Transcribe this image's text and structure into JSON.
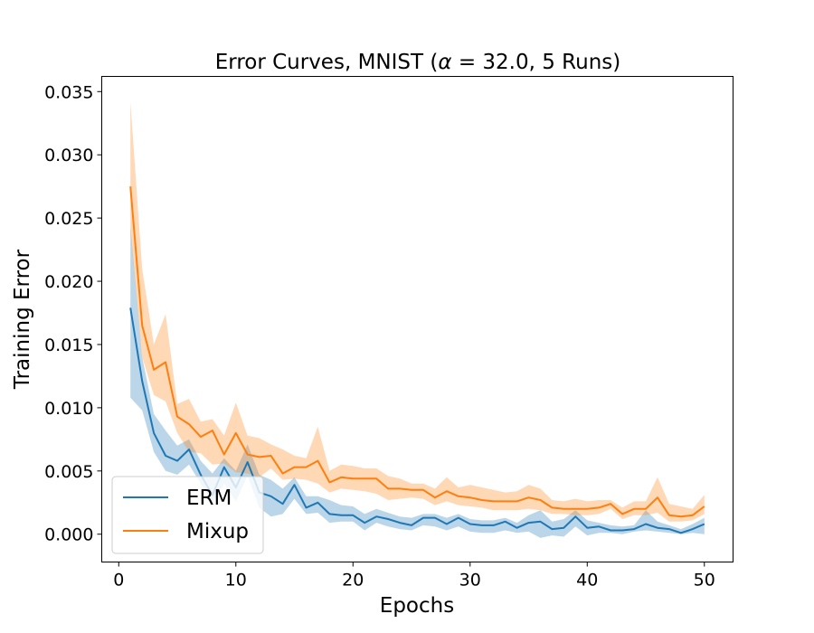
{
  "chart_data": {
    "type": "line",
    "title_main": "Error Curves, MNIST (",
    "title_greek": "α",
    "title_rest": " = 32.0, 5 Runs)",
    "xlabel": "Epochs",
    "ylabel": "Training Error",
    "xlim": [
      -1.45,
      52.45
    ],
    "ylim": [
      -0.0022,
      0.0362
    ],
    "xticks": [
      0,
      10,
      20,
      30,
      40,
      50
    ],
    "xtick_labels": [
      "0",
      "10",
      "20",
      "30",
      "40",
      "50"
    ],
    "yticks": [
      0.0,
      0.005,
      0.01,
      0.015,
      0.02,
      0.025,
      0.03,
      0.035
    ],
    "ytick_labels": [
      "0.000",
      "0.005",
      "0.010",
      "0.015",
      "0.020",
      "0.025",
      "0.030",
      "0.035"
    ],
    "grid": false,
    "legend_position": "lower-left",
    "x": [
      1,
      2,
      3,
      4,
      5,
      6,
      7,
      8,
      9,
      10,
      11,
      12,
      13,
      14,
      15,
      16,
      17,
      18,
      19,
      20,
      21,
      22,
      23,
      24,
      25,
      26,
      27,
      28,
      29,
      30,
      31,
      32,
      33,
      34,
      35,
      36,
      37,
      38,
      39,
      40,
      41,
      42,
      43,
      44,
      45,
      46,
      47,
      48,
      49,
      50
    ],
    "series": [
      {
        "name": "ERM",
        "color": "#1f77b4",
        "values": [
          0.0179,
          0.0121,
          0.008,
          0.0062,
          0.0058,
          0.0067,
          0.0047,
          0.0031,
          0.0053,
          0.0037,
          0.0057,
          0.0033,
          0.003,
          0.0024,
          0.0039,
          0.0021,
          0.0025,
          0.0016,
          0.0015,
          0.0015,
          0.0009,
          0.0014,
          0.0012,
          0.0009,
          0.0007,
          0.0013,
          0.0013,
          0.0008,
          0.0013,
          0.0008,
          0.0007,
          0.0007,
          0.001,
          0.0005,
          0.0009,
          0.001,
          0.0004,
          0.0005,
          0.0014,
          0.0005,
          0.0006,
          0.0003,
          0.0003,
          0.0004,
          0.0008,
          0.0005,
          0.0004,
          0.0001,
          0.0004,
          0.0008
        ],
        "upper": [
          0.0243,
          0.014,
          0.0095,
          0.0082,
          0.007,
          0.0075,
          0.0058,
          0.0048,
          0.006,
          0.005,
          0.0071,
          0.0047,
          0.0043,
          0.0036,
          0.0045,
          0.003,
          0.003,
          0.0027,
          0.0023,
          0.0022,
          0.0016,
          0.002,
          0.0017,
          0.0014,
          0.0013,
          0.0016,
          0.0016,
          0.0013,
          0.0016,
          0.0012,
          0.0011,
          0.0011,
          0.0013,
          0.0009,
          0.0015,
          0.0019,
          0.001,
          0.0012,
          0.0019,
          0.0011,
          0.0009,
          0.0007,
          0.0006,
          0.0007,
          0.0019,
          0.001,
          0.0007,
          0.0004,
          0.0008,
          0.0013
        ],
        "lower": [
          0.0108,
          0.0098,
          0.0065,
          0.005,
          0.0047,
          0.0055,
          0.004,
          0.0025,
          0.004,
          0.0026,
          0.0046,
          0.0021,
          0.0014,
          0.0016,
          0.0028,
          0.0016,
          0.0017,
          0.0009,
          0.001,
          0.001,
          0.0003,
          0.0009,
          0.0006,
          0.0004,
          0.0003,
          0.0007,
          0.0006,
          0.0003,
          0.0006,
          0.0002,
          0.0001,
          0.0001,
          0.0003,
          0.0001,
          0.0002,
          -0.0003,
          -0.0001,
          -0.0002,
          0.0006,
          -0.0001,
          0.0001,
          0.0001,
          0.0,
          0.0002,
          0.0003,
          0.0002,
          0.0001,
          0.0,
          0.0001,
          0.0
        ]
      },
      {
        "name": "Mixup",
        "color": "#ff7f0e",
        "values": [
          0.0275,
          0.0165,
          0.013,
          0.0136,
          0.0093,
          0.0087,
          0.0077,
          0.0082,
          0.0063,
          0.008,
          0.0063,
          0.0061,
          0.0062,
          0.0048,
          0.0053,
          0.0053,
          0.0058,
          0.0041,
          0.0045,
          0.0044,
          0.0044,
          0.0044,
          0.0036,
          0.0036,
          0.0035,
          0.0035,
          0.0029,
          0.0034,
          0.003,
          0.0029,
          0.0027,
          0.0026,
          0.0026,
          0.0026,
          0.0029,
          0.0027,
          0.0021,
          0.002,
          0.002,
          0.002,
          0.0021,
          0.0024,
          0.0016,
          0.002,
          0.002,
          0.0029,
          0.0015,
          0.0014,
          0.0015,
          0.0022
        ],
        "upper": [
          0.0342,
          0.021,
          0.015,
          0.0174,
          0.0103,
          0.0107,
          0.0089,
          0.0091,
          0.0078,
          0.0104,
          0.0078,
          0.0076,
          0.0071,
          0.0067,
          0.0062,
          0.006,
          0.0085,
          0.005,
          0.0055,
          0.0054,
          0.0052,
          0.0052,
          0.0046,
          0.0044,
          0.004,
          0.004,
          0.0036,
          0.0045,
          0.0037,
          0.0039,
          0.0037,
          0.0035,
          0.0033,
          0.0034,
          0.0039,
          0.0036,
          0.0027,
          0.0026,
          0.0028,
          0.0026,
          0.0027,
          0.0027,
          0.0021,
          0.0026,
          0.0026,
          0.0045,
          0.0024,
          0.0022,
          0.002,
          0.0031
        ],
        "lower": [
          0.024,
          0.014,
          0.011,
          0.0105,
          0.008,
          0.0065,
          0.0064,
          0.0055,
          0.0056,
          0.0049,
          0.0048,
          0.0045,
          0.0052,
          0.0043,
          0.0044,
          0.0043,
          0.004,
          0.0033,
          0.0036,
          0.0035,
          0.0034,
          0.0032,
          0.0027,
          0.0028,
          0.0029,
          0.0028,
          0.0023,
          0.0026,
          0.0023,
          0.0022,
          0.0021,
          0.0019,
          0.0019,
          0.0019,
          0.002,
          0.0019,
          0.0016,
          0.0016,
          0.0015,
          0.0015,
          0.0016,
          0.002,
          0.0012,
          0.0015,
          0.0015,
          0.0017,
          0.001,
          0.001,
          0.0011,
          0.0016
        ]
      }
    ]
  }
}
